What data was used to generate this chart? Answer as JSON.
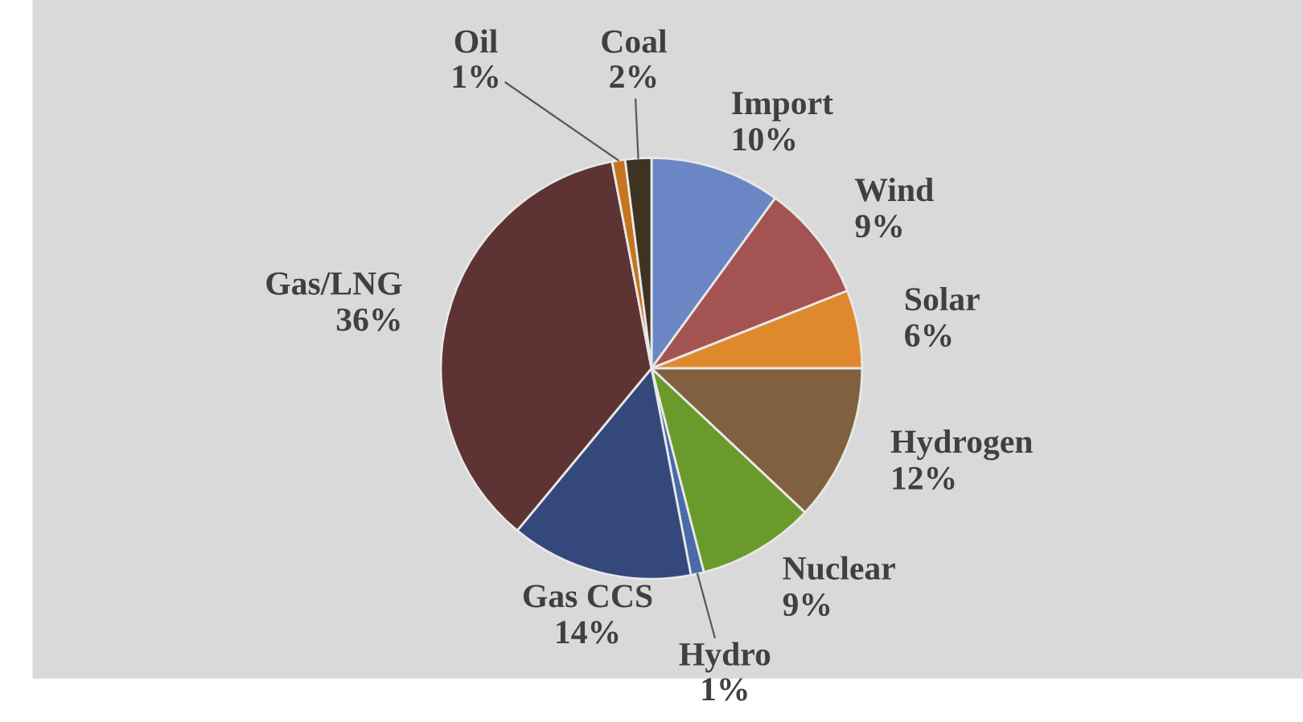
{
  "chart_data": {
    "type": "pie",
    "categories": [
      "Import",
      "Wind",
      "Solar",
      "Hydrogen",
      "Nuclear",
      "Hydro",
      "Gas CCS",
      "Gas/LNG",
      "Oil",
      "Coal"
    ],
    "values": [
      10,
      9,
      6,
      12,
      9,
      1,
      14,
      36,
      1,
      2
    ],
    "colors": [
      "#6a86c4",
      "#a45353",
      "#e0892c",
      "#81603f",
      "#6a9a2c",
      "#4a6aa8",
      "#34487c",
      "#5e3333",
      "#c6741e",
      "#3e3222"
    ],
    "value_labels": [
      "10%",
      "9%",
      "6%",
      "12%",
      "9%",
      "1%",
      "14%",
      "36%",
      "1%",
      "2%"
    ],
    "legend": false
  }
}
